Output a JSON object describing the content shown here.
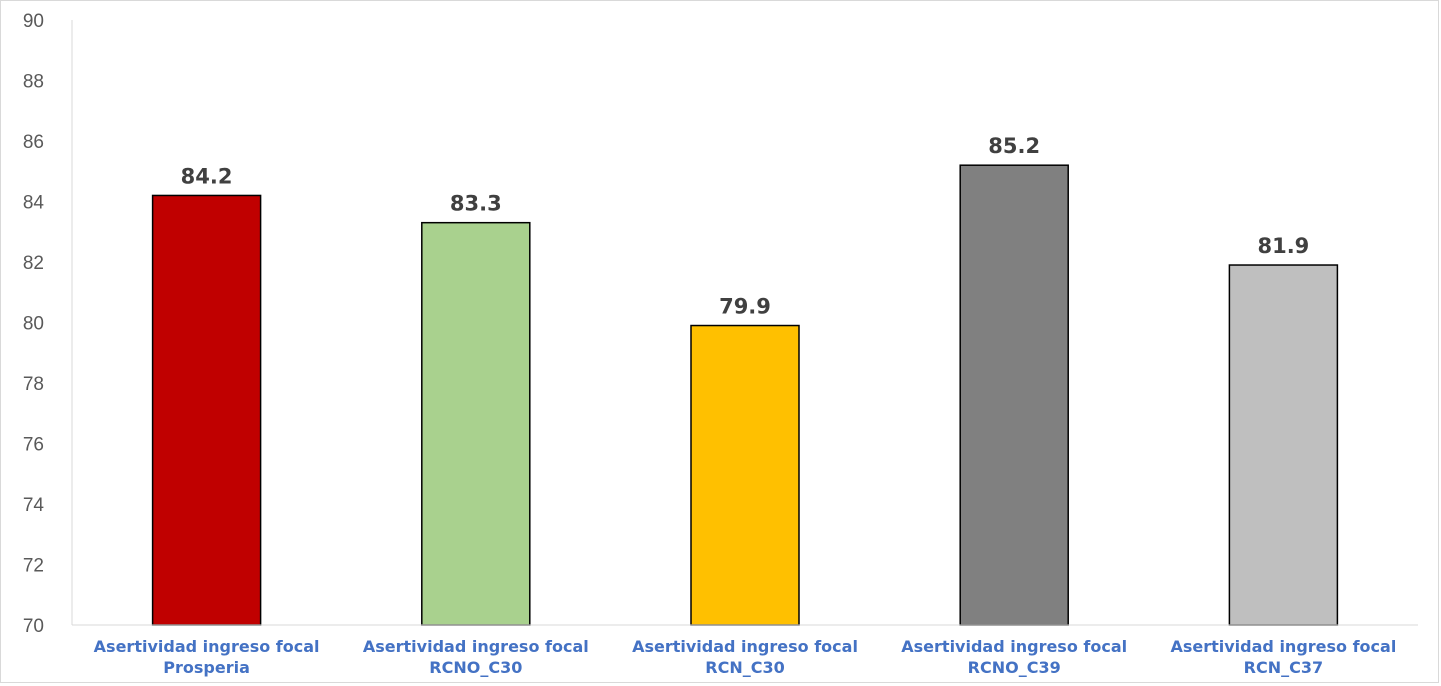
{
  "chart_data": {
    "type": "bar",
    "categories": [
      [
        "Asertividad ingreso focal",
        "Prosperia"
      ],
      [
        "Asertividad ingreso focal",
        "RCNO_C30"
      ],
      [
        "Asertividad ingreso focal",
        "RCN_C30"
      ],
      [
        "Asertividad ingreso focal",
        "RCNO_C39"
      ],
      [
        "Asertividad ingreso focal",
        "RCN_C37"
      ]
    ],
    "values": [
      84.2,
      83.3,
      79.9,
      85.2,
      81.9
    ],
    "data_labels": [
      "84.2",
      "83.3",
      "79.9",
      "85.2",
      "81.9"
    ],
    "colors": [
      "#c00000",
      "#a9d18e",
      "#ffc000",
      "#808080",
      "#bfbfbf"
    ],
    "ylim": [
      70,
      90
    ],
    "yticks": [
      "70",
      "72",
      "74",
      "76",
      "78",
      "80",
      "82",
      "84",
      "86",
      "88",
      "90"
    ],
    "grid": false,
    "title": "",
    "xlabel": "",
    "ylabel": ""
  }
}
